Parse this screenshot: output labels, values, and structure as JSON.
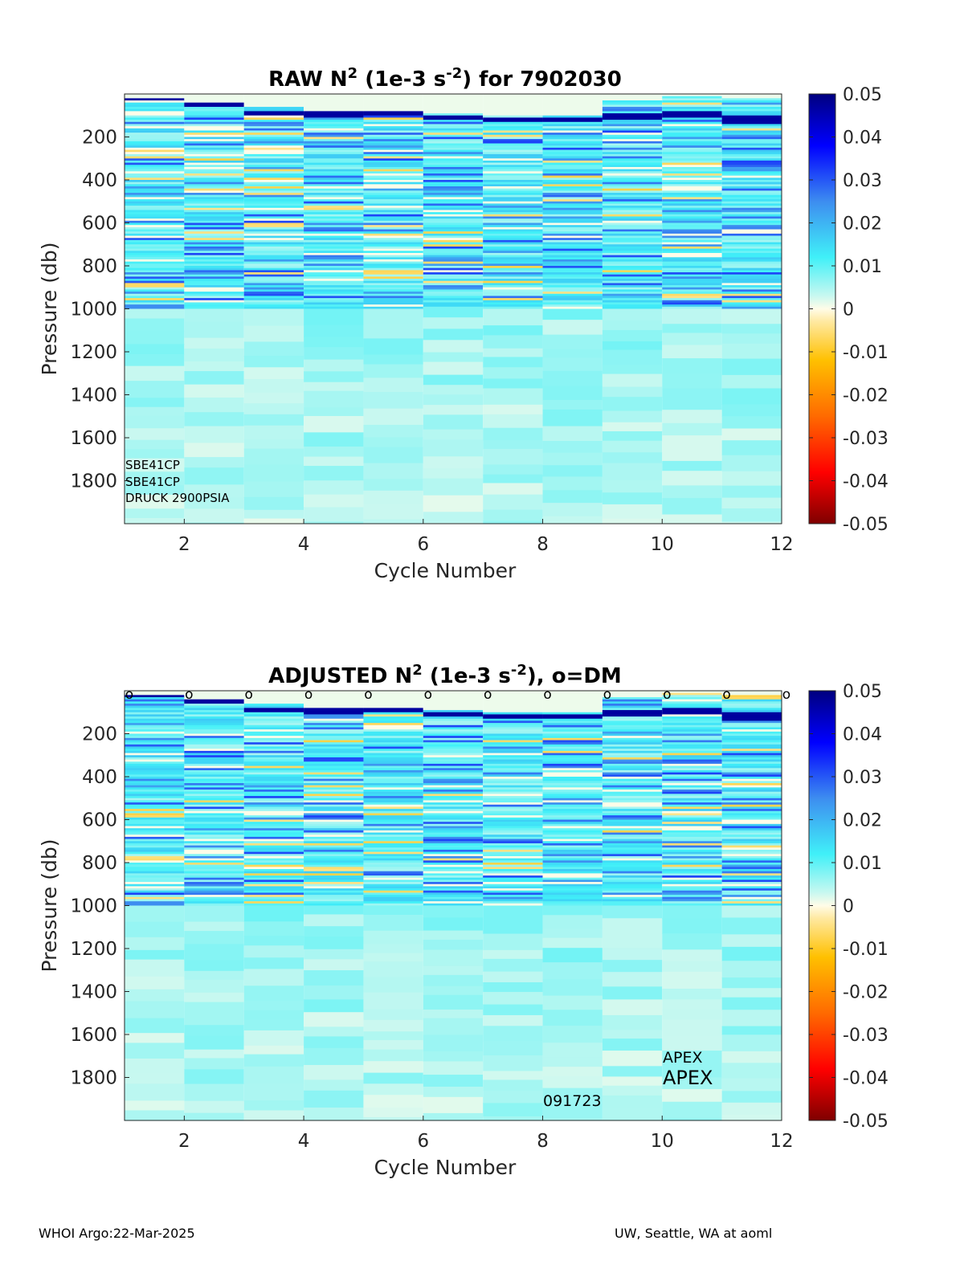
{
  "footer": {
    "left": "WHOI Argo:22-Mar-2025",
    "right": "UW, Seattle, WA at aoml"
  },
  "colors": {
    "min": "#7f0000",
    "neg_mid": "#ff8000",
    "neg_low": "#ffe066",
    "zero": "#fffbe0",
    "pos_low": "#a8f4f0",
    "pos_mid": "#3d8df0",
    "max": "#00007f"
  },
  "chart_data": [
    {
      "type": "heatmap",
      "title": {
        "main": "RAW N",
        "sup1": "2",
        "mid": " (1e-3 s",
        "sup2": "-2",
        "end": ") for 7902030"
      },
      "xlabel": "Cycle Number",
      "ylabel": "Pressure (db)",
      "xlim": [
        1,
        12
      ],
      "ylim": [
        2000,
        0
      ],
      "y_reversed": true,
      "xticks": [
        2,
        4,
        6,
        8,
        10,
        12
      ],
      "yticks": [
        200,
        400,
        600,
        800,
        1000,
        1200,
        1400,
        1600,
        1800
      ],
      "colorbar": {
        "min": -0.05,
        "max": 0.05,
        "ticks": [
          "0.05",
          "0.04",
          "0.03",
          "0.02",
          "0.01",
          "0",
          "-0.01",
          "-0.02",
          "-0.03",
          "-0.04",
          "-0.05"
        ]
      },
      "annotations": [
        "SBE41CP",
        "SBE41CP",
        "DRUCK 2900PSIA"
      ],
      "dm_markers": false,
      "cycles": [
        1,
        2,
        3,
        4,
        5,
        6,
        7,
        8,
        9,
        10,
        11
      ],
      "surface_top_db": [
        20,
        40,
        60,
        80,
        80,
        90,
        100,
        100,
        30,
        10,
        20
      ],
      "strong_layer_db": [
        [
          20,
          5
        ],
        [
          40,
          15
        ],
        [
          80,
          20
        ],
        [
          80,
          25
        ],
        [
          80,
          15
        ],
        [
          100,
          15
        ],
        [
          110,
          15
        ],
        [
          110,
          20
        ],
        [
          90,
          25
        ],
        [
          80,
          30
        ],
        [
          100,
          40
        ]
      ],
      "deep_anomaly": {
        "cycle": 1,
        "pressure_db": 985,
        "value": 0.025
      },
      "upper_mean": 0.011,
      "deep_mean": 0.006,
      "gradient_base_db": 1000
    },
    {
      "type": "heatmap",
      "title": {
        "main": "ADJUSTED N",
        "sup1": "2",
        "mid": " (1e-3 s",
        "sup2": "-2",
        "end": "), o=DM"
      },
      "xlabel": "Cycle Number",
      "ylabel": "Pressure (db)",
      "xlim": [
        1,
        12
      ],
      "ylim": [
        2000,
        0
      ],
      "y_reversed": true,
      "xticks": [
        2,
        4,
        6,
        8,
        10,
        12
      ],
      "yticks": [
        200,
        400,
        600,
        800,
        1000,
        1200,
        1400,
        1600,
        1800
      ],
      "colorbar": {
        "min": -0.05,
        "max": 0.05,
        "ticks": [
          "0.05",
          "0.04",
          "0.03",
          "0.02",
          "0.01",
          "0",
          "-0.01",
          "-0.02",
          "-0.03",
          "-0.04",
          "-0.05"
        ]
      },
      "annotations": [
        "APEX",
        "APEX",
        "091723"
      ],
      "dm_markers": true,
      "dm_marker_label": "o",
      "dm_cycles": [
        1,
        2,
        3,
        4,
        5,
        6,
        7,
        8,
        9,
        10,
        11,
        12
      ],
      "cycles": [
        1,
        2,
        3,
        4,
        5,
        6,
        7,
        8,
        9,
        10,
        11
      ],
      "surface_top_db": [
        20,
        40,
        60,
        80,
        80,
        90,
        100,
        100,
        30,
        10,
        20
      ],
      "strong_layer_db": [
        [
          20,
          5
        ],
        [
          40,
          15
        ],
        [
          80,
          20
        ],
        [
          80,
          25
        ],
        [
          80,
          15
        ],
        [
          100,
          15
        ],
        [
          110,
          15
        ],
        [
          110,
          20
        ],
        [
          90,
          25
        ],
        [
          80,
          30
        ],
        [
          100,
          40
        ]
      ],
      "deep_anomaly": {
        "cycle": 1,
        "pressure_db": 985,
        "value": 0.025
      },
      "upper_mean": 0.011,
      "deep_mean": 0.006,
      "gradient_base_db": 1000
    }
  ]
}
